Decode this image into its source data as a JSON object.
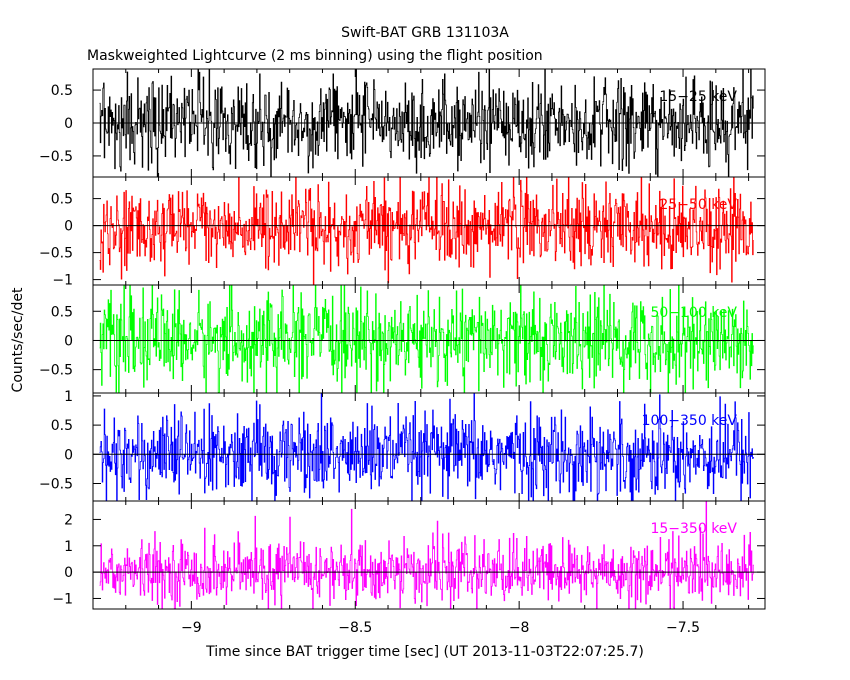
{
  "chart_data": {
    "type": "line",
    "title": "Swift-BAT GRB 131103A",
    "subtitle": "Maskweighted Lightcurve (2 ms binning) using the flight position",
    "xlabel": "Time since BAT trigger time [sec] (UT 2013-11-03T22:07:25.7)",
    "ylabel": "Counts/sec/det",
    "xlim": [
      -9.3,
      -7.25
    ],
    "x_ticks": [
      -9,
      -8.5,
      -8,
      -7.5
    ],
    "x_tick_labels": [
      "−9",
      "−8.5",
      "−8",
      "−7.5"
    ],
    "bin_width_sec": 0.002,
    "grid": false,
    "series": [
      {
        "name": "15−25 keV",
        "color": "#000000",
        "ylim": [
          -0.82,
          0.82
        ],
        "yticks": [
          0.5,
          0,
          -0.5
        ],
        "ytick_labels": [
          "0.5",
          "0",
          "−0.5"
        ],
        "noise_amplitude": 0.7
      },
      {
        "name": "25−50 keV",
        "color": "#ff0000",
        "ylim": [
          -1.1,
          0.9
        ],
        "yticks": [
          0.5,
          0,
          -0.5,
          -1
        ],
        "ytick_labels": [
          "0.5",
          "0",
          "−0.5",
          "−1"
        ],
        "noise_amplitude": 0.85
      },
      {
        "name": "50−100 keV",
        "color": "#00ff00",
        "ylim": [
          -0.9,
          0.95
        ],
        "yticks": [
          0.5,
          0,
          -0.5
        ],
        "ytick_labels": [
          "0.5",
          "0",
          "−0.5"
        ],
        "noise_amplitude": 0.85
      },
      {
        "name": "100−350 keV",
        "color": "#0000ff",
        "ylim": [
          -0.8,
          1.05
        ],
        "yticks": [
          1,
          0.5,
          0,
          -0.5
        ],
        "ytick_labels": [
          "1",
          "0.5",
          "0",
          "−0.5"
        ],
        "noise_amplitude": 0.8
      },
      {
        "name": "15−350 keV",
        "color": "#ff00ff",
        "ylim": [
          -1.4,
          2.7
        ],
        "yticks": [
          2,
          1,
          0,
          -1
        ],
        "ytick_labels": [
          "2",
          "1",
          "0",
          "−1"
        ],
        "noise_amplitude": 1.3
      }
    ]
  }
}
